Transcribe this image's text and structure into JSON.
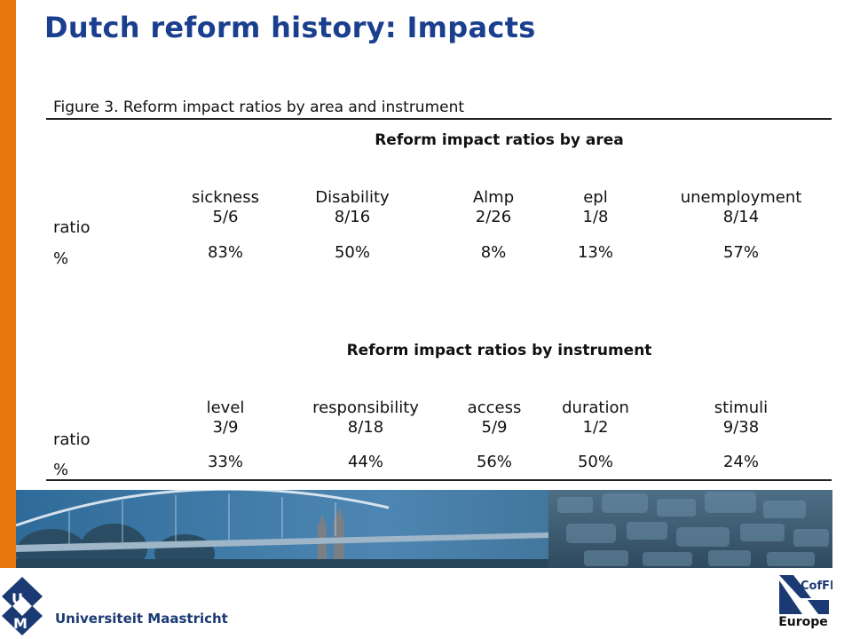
{
  "slide": {
    "title": "Dutch reform history: Impacts"
  },
  "figure": {
    "caption": "Figure 3. Reform impact ratios by area and instrument",
    "by_area": {
      "heading": "Reform impact ratios by area",
      "row_labels": {
        "ratio": "ratio",
        "percent": "%"
      },
      "columns": [
        {
          "name": "sickness",
          "ratio": "5/6",
          "percent": "83%"
        },
        {
          "name": "Disability",
          "ratio": "8/16",
          "percent": "50%"
        },
        {
          "name": "Almp",
          "ratio": "2/26",
          "percent": "8%"
        },
        {
          "name": "epl",
          "ratio": "1/8",
          "percent": "13%"
        },
        {
          "name": "unemployment",
          "ratio": "8/14",
          "percent": "57%"
        }
      ]
    },
    "by_instrument": {
      "heading": "Reform impact ratios by instrument",
      "row_labels": {
        "ratio": "ratio",
        "percent": "%"
      },
      "columns": [
        {
          "name": "level",
          "ratio": "3/9",
          "percent": "33%"
        },
        {
          "name": "responsibility",
          "ratio": "8/18",
          "percent": "44%"
        },
        {
          "name": "access",
          "ratio": "5/9",
          "percent": "56%"
        },
        {
          "name": "duration",
          "ratio": "1/2",
          "percent": "50%"
        },
        {
          "name": "stimuli",
          "ratio": "9/38",
          "percent": "24%"
        }
      ]
    }
  },
  "footer": {
    "university_logo_letters": "UM",
    "university_name": "Universiteit Maastricht",
    "partner_logo_text": "CofFEE",
    "partner_logo_sub": "Europe"
  },
  "colors": {
    "title_blue": "#1b3f8f",
    "accent_orange": "#e8780e",
    "logo_navy": "#1b3a73"
  }
}
